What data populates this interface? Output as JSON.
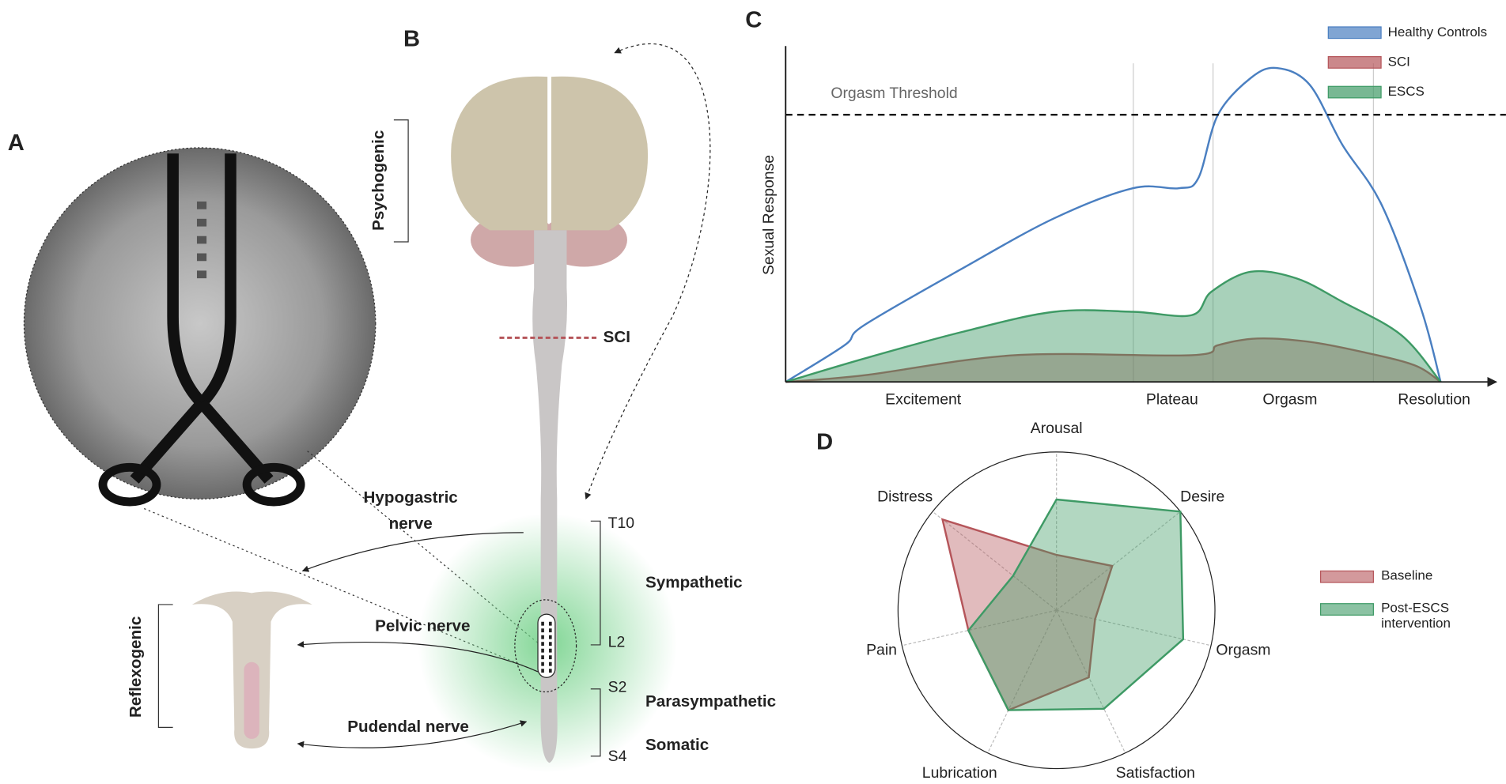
{
  "figure": {
    "panel_a": {
      "label": "A"
    },
    "panel_b": {
      "label": "B",
      "psychogenic": "Psychogenic",
      "sci": "SCI",
      "hypogastric": "Hypogastric nerve",
      "pelvic": "Pelvic nerve",
      "pudendal": "Pudendal nerve",
      "reflexogenic": "Reflexogenic",
      "t10": "T10",
      "l2": "L2",
      "s2": "S2",
      "s4": "S4",
      "sympathetic": "Sympathetic",
      "parasympathetic": "Parasympathetic",
      "somatic": "Somatic"
    }
  },
  "chart_data": [
    {
      "type": "area",
      "label": "C",
      "ylabel": "Sexual Response",
      "xlim": [
        0,
        100
      ],
      "ylim": [
        0,
        100
      ],
      "xticks": [
        {
          "value": 21,
          "label": "Excitement"
        },
        {
          "value": 59,
          "label": "Plateau"
        },
        {
          "value": 77,
          "label": "Orgasm"
        },
        {
          "value": 99,
          "label": "Resolution"
        }
      ],
      "threshold": 80,
      "threshold_label": "Orgasm Threshold",
      "legend": "top-right",
      "series": [
        {
          "name": "Healthy Controls",
          "color": "#4a7fc1",
          "fill": false,
          "x": [
            0,
            9,
            12,
            27,
            41,
            53,
            60,
            63,
            66,
            71,
            75,
            80,
            85,
            91,
            97,
            100
          ],
          "values": [
            0,
            11,
            17,
            34,
            49,
            58,
            58,
            61,
            80,
            91,
            94,
            89,
            71,
            53,
            22,
            0
          ]
        },
        {
          "name": "SCI",
          "color": "#b5555a",
          "fill": true,
          "x": [
            0,
            12,
            35,
            62,
            66,
            72,
            80,
            88,
            96,
            100
          ],
          "values": [
            0,
            2,
            8,
            8,
            11,
            13,
            12,
            9,
            5,
            0
          ]
        },
        {
          "name": "ESCS",
          "color": "#3e9a65",
          "fill": true,
          "x": [
            0,
            12,
            27,
            41,
            53,
            62,
            65,
            71,
            78,
            85,
            94,
            100
          ],
          "values": [
            0,
            7,
            15,
            21,
            21,
            20,
            27,
            33,
            31,
            24,
            14,
            0
          ]
        }
      ]
    },
    {
      "type": "radar",
      "label": "D",
      "ylim": [
        0,
        100
      ],
      "legend": "right",
      "categories": [
        "Arousal",
        "Desire",
        "Orgasm",
        "Satisfaction",
        "Lubrication",
        "Pain",
        "Distress"
      ],
      "series": [
        {
          "name": "Baseline",
          "color": "#b5555a",
          "values": [
            35,
            45,
            25,
            47,
            70,
            57,
            92
          ]
        },
        {
          "name": "Post-ESCS intervention",
          "color": "#3e9a65",
          "values": [
            70,
            100,
            82,
            69,
            70,
            57,
            35
          ]
        }
      ]
    }
  ]
}
